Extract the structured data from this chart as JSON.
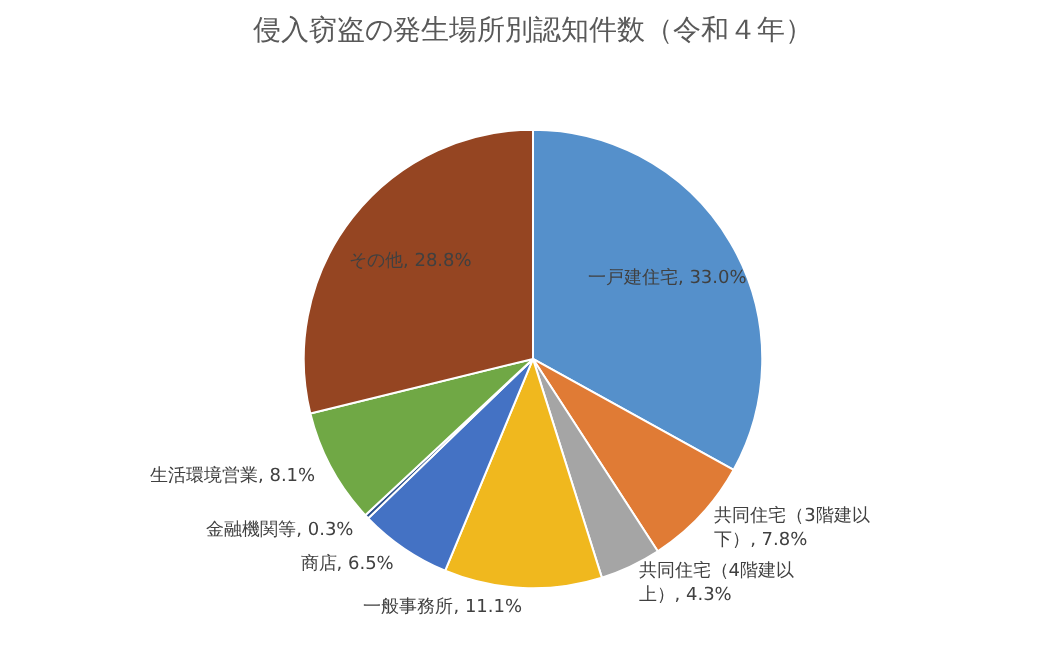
{
  "chart_data": {
    "type": "pie",
    "title": "侵入窃盗の発生場所別認知件数（令和４年）",
    "categories": [
      "一戸建住宅",
      "共同住宅（3階建以下）",
      "共同住宅（4階建以上）",
      "一般事務所",
      "商店",
      "金融機関等",
      "生活環境営業",
      "その他"
    ],
    "values": [
      33.0,
      7.8,
      4.3,
      11.1,
      6.5,
      0.3,
      8.1,
      28.8
    ],
    "value_labels": [
      "33.0%",
      "7.8%",
      "4.3%",
      "11.1%",
      "6.5%",
      "0.3%",
      "8.1%",
      "28.8%"
    ],
    "colors": [
      "#5590cb",
      "#e07b35",
      "#a5a5a5",
      "#f0b81e",
      "#4472c4",
      "#2a4f8c",
      "#70a845",
      "#954522"
    ]
  }
}
